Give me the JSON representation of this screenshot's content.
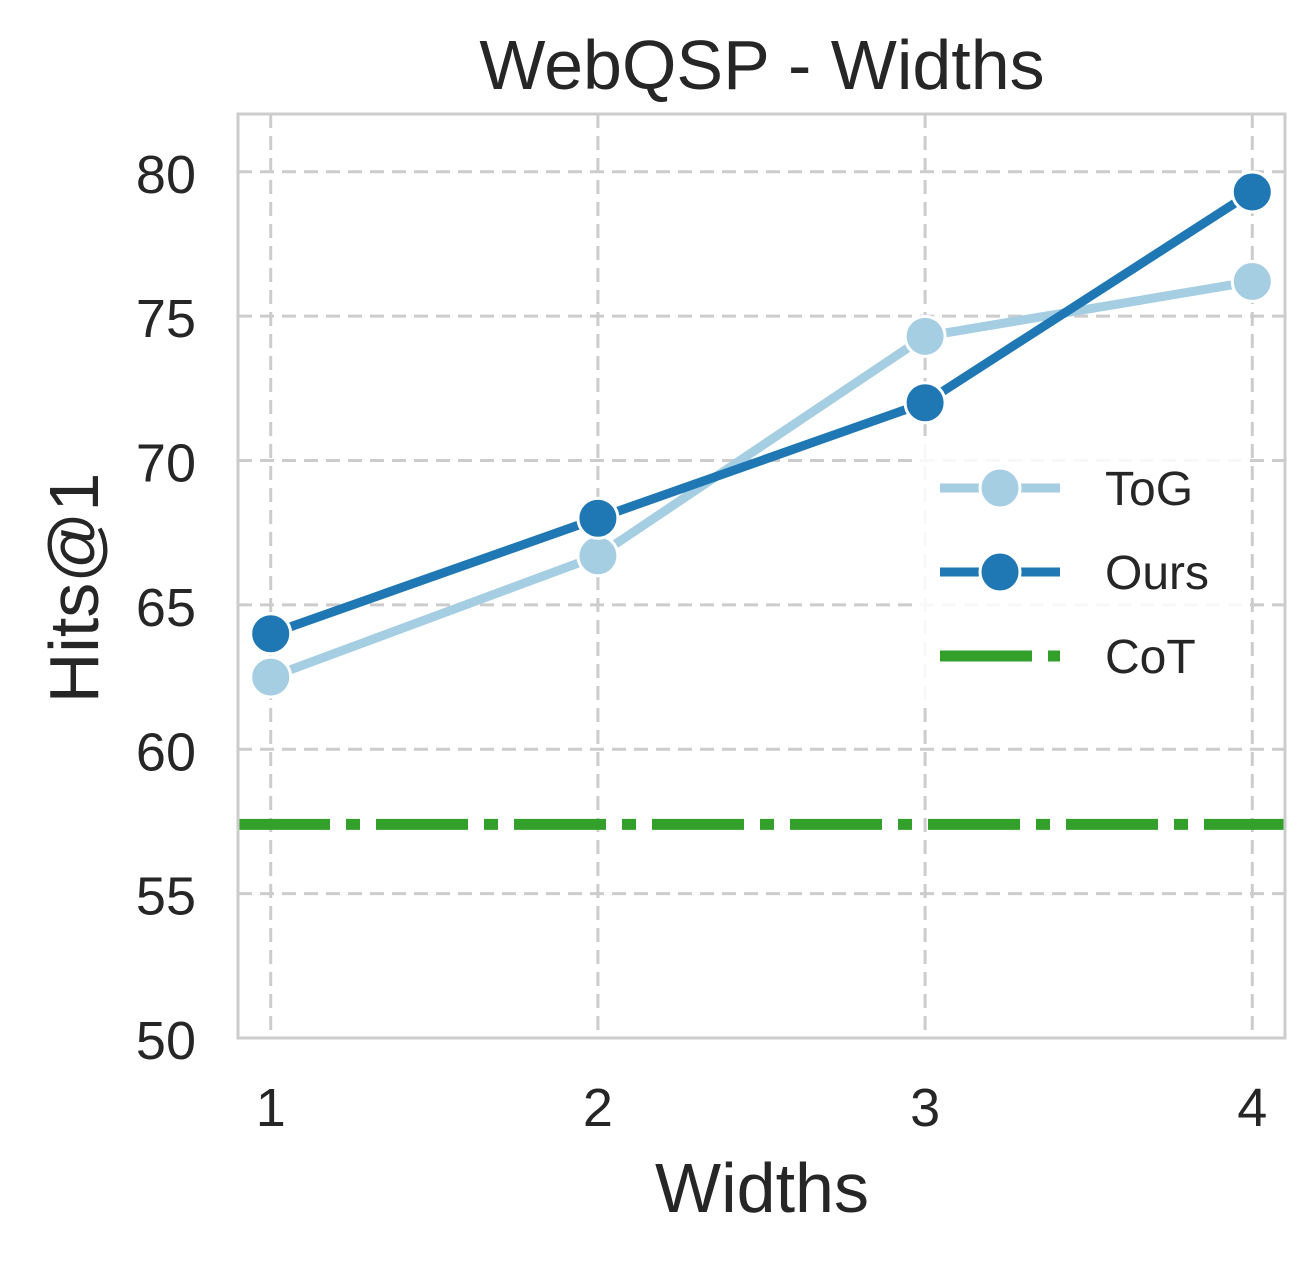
{
  "chart_data": {
    "type": "line",
    "title": "WebQSP - Widths",
    "xlabel": "Widths",
    "ylabel": "Hits@1",
    "x": [
      1,
      2,
      3,
      4
    ],
    "xlim": [
      0.9,
      4.1
    ],
    "ylim": [
      50,
      82
    ],
    "yticks": [
      50,
      55,
      60,
      65,
      70,
      75,
      80
    ],
    "grid": true,
    "legend_position": "center-right",
    "series": [
      {
        "name": "ToG",
        "values": [
          62.5,
          66.7,
          74.3,
          76.2
        ],
        "color": "#a6cee3",
        "marker": "circle",
        "line_style": "solid"
      },
      {
        "name": "Ours",
        "values": [
          64.0,
          68.0,
          72.0,
          79.3
        ],
        "color": "#1f78b4",
        "marker": "circle",
        "line_style": "solid"
      }
    ],
    "reference_lines": [
      {
        "name": "CoT",
        "value": 57.4,
        "color": "#33a02c",
        "line_style": "dash-dot"
      }
    ]
  }
}
